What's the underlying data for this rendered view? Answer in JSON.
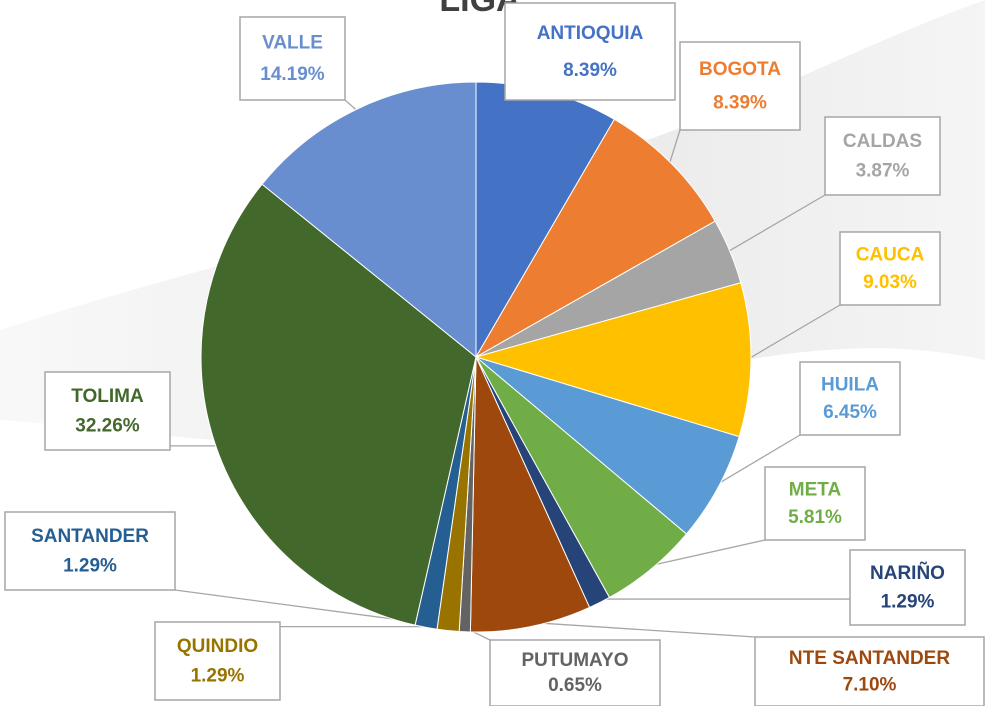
{
  "chart_data": {
    "type": "pie",
    "title": "LIGA",
    "categories": [
      "ANTIOQUIA",
      "BOGOTA",
      "CALDAS",
      "CAUCA",
      "HUILA",
      "META",
      "NARIÑO",
      "NTE SANTANDER",
      "PUTUMAYO",
      "QUINDIO",
      "SANTANDER",
      "TOLIMA",
      "VALLE"
    ],
    "values": [
      8.39,
      8.39,
      3.87,
      9.03,
      6.45,
      5.81,
      1.29,
      7.1,
      0.65,
      1.29,
      1.29,
      32.26,
      14.19
    ],
    "value_labels": [
      "8.39%",
      "8.39%",
      "3.87%",
      "9.03%",
      "6.45%",
      "5.81%",
      "1.29%",
      "7.10%",
      "0.65%",
      "1.29%",
      "1.29%",
      "32.26%",
      "14.19%"
    ],
    "colors": [
      "#4472c4",
      "#ed7d31",
      "#a5a5a5",
      "#ffc000",
      "#5b9bd5",
      "#70ad47",
      "#264478",
      "#9e480e",
      "#636363",
      "#997300",
      "#255e91",
      "#43682b",
      "#698ed0"
    ]
  }
}
